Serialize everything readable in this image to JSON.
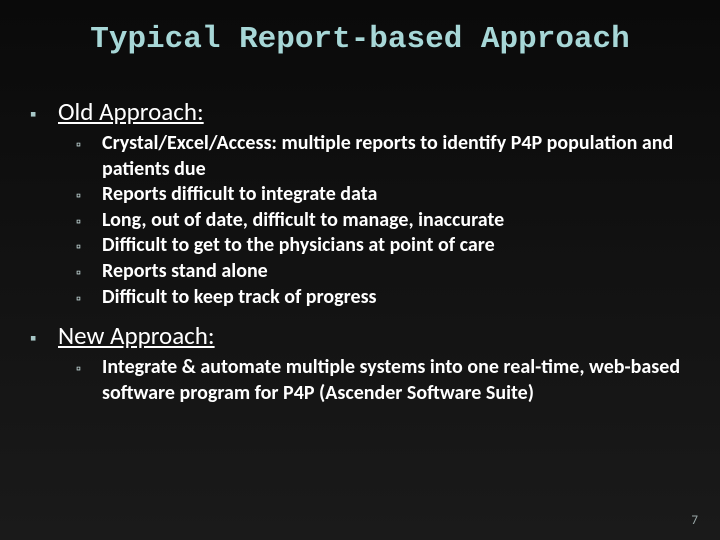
{
  "title": "Typical Report-based Approach",
  "sections": [
    {
      "heading": "Old Approach:",
      "items": [
        "Crystal/Excel/Access: multiple reports to identify P4P population and patients due",
        "Reports difficult to integrate data",
        "Long, out of date, difficult to manage, inaccurate",
        "Difficult to get to the physicians at point of care",
        "Reports stand alone",
        "Difficult to keep track of progress"
      ]
    },
    {
      "heading": "New Approach:",
      "items": [
        "Integrate & automate multiple systems into one real-time, web-based software program for P4P (Ascender Software Suite)"
      ]
    }
  ],
  "page_number": "7",
  "colors": {
    "background": "#0a0a0a",
    "title_color": "#a7d7d7",
    "text_color": "#ffffff",
    "bullet_color": "#a7c7c7",
    "pagenum_color": "#9aa8a8"
  },
  "fonts": {
    "title_family": "Courier New",
    "title_size_pt": 31,
    "heading_size_pt": 25,
    "body_size_pt": 20
  }
}
